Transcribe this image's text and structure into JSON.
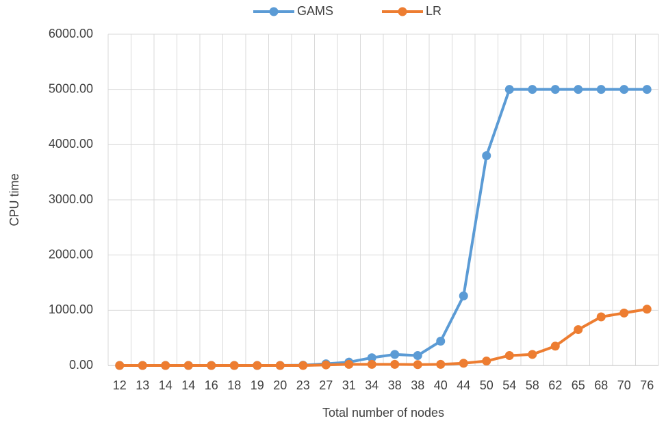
{
  "chart_data": {
    "type": "line",
    "x_label": "Total number of nodes",
    "y_label": "CPU time",
    "categories": [
      "12",
      "13",
      "14",
      "14",
      "16",
      "18",
      "19",
      "20",
      "23",
      "27",
      "31",
      "34",
      "38",
      "38",
      "40",
      "44",
      "50",
      "54",
      "58",
      "62",
      "65",
      "68",
      "70",
      "76"
    ],
    "series": [
      {
        "name": "GAMS",
        "color": "#5b9bd5",
        "values": [
          0,
          0,
          0,
          0,
          0,
          0,
          0,
          0,
          5,
          30,
          60,
          140,
          200,
          180,
          440,
          1260,
          3800,
          5000,
          5000,
          5000,
          5000,
          5000,
          5000,
          5000
        ]
      },
      {
        "name": "LR",
        "color": "#ed7d31",
        "values": [
          0,
          0,
          0,
          0,
          0,
          0,
          0,
          0,
          0,
          10,
          20,
          20,
          20,
          15,
          20,
          40,
          80,
          180,
          200,
          350,
          650,
          880,
          950,
          1020
        ]
      }
    ],
    "ylim": [
      0,
      6000
    ],
    "yticks": [
      {
        "value": 0,
        "label": "0.00"
      },
      {
        "value": 1000,
        "label": "1000.00"
      },
      {
        "value": 2000,
        "label": "2000.00"
      },
      {
        "value": 3000,
        "label": "3000.00"
      },
      {
        "value": 4000,
        "label": "4000.00"
      },
      {
        "value": 5000,
        "label": "5000.00"
      },
      {
        "value": 6000,
        "label": "6000.00"
      }
    ],
    "grid": true,
    "legend": "top"
  }
}
